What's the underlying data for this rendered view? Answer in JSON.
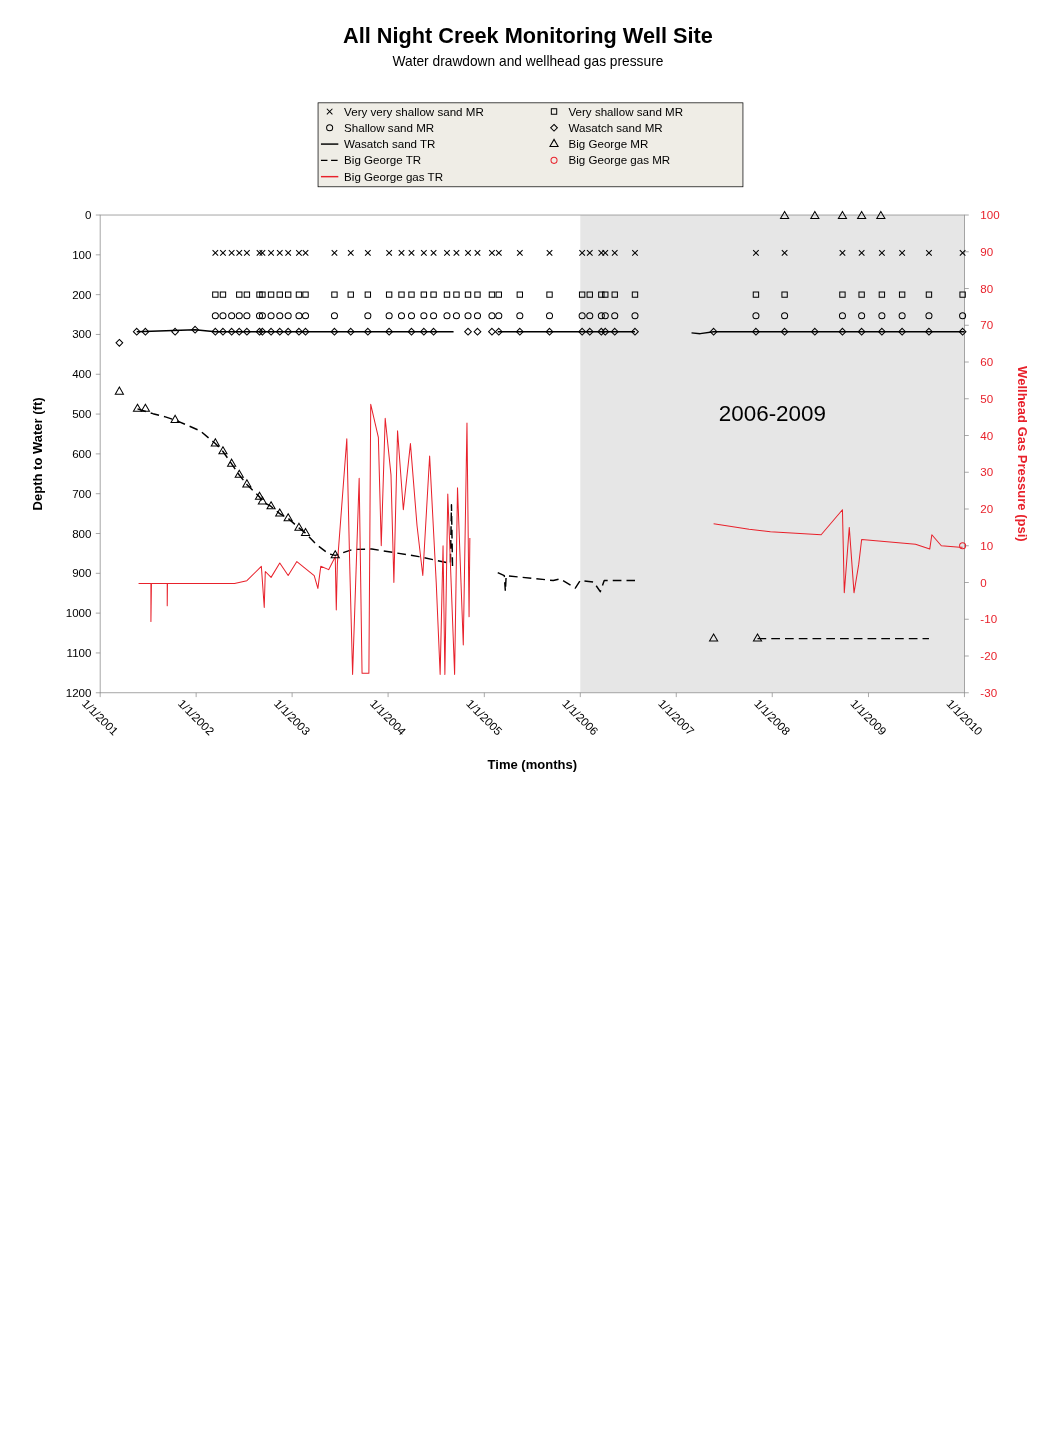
{
  "chart_data": {
    "type": "scatter",
    "title": "All Night Creek Monitoring Well Site",
    "subtitle": "Water drawdown and wellhead gas pressure",
    "xlabel": "Time (months)",
    "ylabel": "Depth to Water (ft)",
    "y2label": "Wellhead Gas Pressure (psi)",
    "xlim": [
      "2001-01-01",
      "2010-01-01"
    ],
    "xticks": [
      {
        "value": "2001-01-01",
        "label": "1/1/2001"
      },
      {
        "value": "2002-01-01",
        "label": "1/1/2002"
      },
      {
        "value": "2003-01-01",
        "label": "1/1/2003"
      },
      {
        "value": "2004-01-01",
        "label": "1/1/2004"
      },
      {
        "value": "2005-01-01",
        "label": "1/1/2005"
      },
      {
        "value": "2006-01-01",
        "label": "1/1/2006"
      },
      {
        "value": "2007-01-01",
        "label": "1/1/2007"
      },
      {
        "value": "2008-01-01",
        "label": "1/1/2008"
      },
      {
        "value": "2009-01-01",
        "label": "1/1/2009"
      },
      {
        "value": "2010-01-01",
        "label": "1/1/2010"
      }
    ],
    "ylim": [
      1200,
      0
    ],
    "yticks": [
      0,
      100,
      200,
      300,
      400,
      500,
      600,
      700,
      800,
      900,
      1000,
      1100,
      1200
    ],
    "y2lim": [
      -30,
      100
    ],
    "y2ticks": [
      -30,
      -20,
      -10,
      0,
      10,
      20,
      30,
      40,
      50,
      60,
      70,
      80,
      90,
      100
    ],
    "legend": "top",
    "bands": [
      {
        "axis": "x",
        "from": "2006-01-01",
        "to": "2010-01-01",
        "label": "2006-2009",
        "color": "#e6e6e6"
      }
    ],
    "series": [
      {
        "name": "Very very shallow sand MR",
        "marker": "cross",
        "color": "#000000",
        "x": [
          "2002-03-15",
          "2002-04-13",
          "2002-05-16",
          "2002-06-14",
          "2002-07-13",
          "2002-08-30",
          "2002-09-10",
          "2002-10-13",
          "2002-11-15",
          "2002-12-17",
          "2003-01-27",
          "2003-02-21",
          "2003-06-11",
          "2003-08-12",
          "2003-10-16",
          "2004-01-05",
          "2004-02-21",
          "2004-03-30",
          "2004-05-16",
          "2004-06-22",
          "2004-08-12",
          "2004-09-17",
          "2004-10-31",
          "2004-12-06",
          "2005-01-30",
          "2005-02-25",
          "2005-05-16",
          "2005-09-06",
          "2006-01-08",
          "2006-02-06",
          "2006-03-22",
          "2006-04-06",
          "2006-05-12",
          "2006-07-28",
          "2007-10-31",
          "2008-02-17",
          "2008-09-24",
          "2008-12-06",
          "2009-02-21",
          "2009-05-09",
          "2009-08-19",
          "2009-12-25"
        ],
        "values": [
          95,
          95,
          95,
          95,
          95,
          95,
          95,
          95,
          95,
          95,
          95,
          95,
          95,
          95,
          95,
          95,
          95,
          95,
          95,
          95,
          95,
          95,
          95,
          95,
          95,
          95,
          95,
          95,
          95,
          95,
          95,
          95,
          95,
          95,
          95,
          95,
          95,
          95,
          95,
          95,
          95,
          95
        ]
      },
      {
        "name": "Shallow sand MR",
        "marker": "circle",
        "color": "#000000",
        "x": [
          "2002-03-15",
          "2002-04-13",
          "2002-05-16",
          "2002-06-14",
          "2002-07-13",
          "2002-08-30",
          "2002-09-10",
          "2002-10-13",
          "2002-11-15",
          "2002-12-17",
          "2003-01-27",
          "2003-02-21",
          "2003-06-11",
          "2003-10-16",
          "2004-01-05",
          "2004-02-21",
          "2004-03-30",
          "2004-05-16",
          "2004-06-22",
          "2004-08-12",
          "2004-09-17",
          "2004-10-31",
          "2004-12-06",
          "2005-01-30",
          "2005-02-25",
          "2005-05-16",
          "2005-09-06",
          "2006-01-08",
          "2006-02-06",
          "2006-03-22",
          "2006-04-06",
          "2006-05-12",
          "2006-07-28",
          "2007-10-31",
          "2008-02-17",
          "2008-09-24",
          "2008-12-06",
          "2009-02-21",
          "2009-05-09",
          "2009-08-19",
          "2009-12-25"
        ],
        "values": [
          253,
          253,
          253,
          253,
          253,
          253,
          253,
          253,
          253,
          253,
          253,
          253,
          253,
          253,
          253,
          253,
          253,
          253,
          253,
          253,
          253,
          253,
          253,
          253,
          253,
          253,
          253,
          253,
          253,
          253,
          253,
          253,
          253,
          253,
          253,
          253,
          253,
          253,
          253,
          253,
          253
        ]
      },
      {
        "name": "Wasatch sand TR",
        "type": "line",
        "marker": "none",
        "line_style": "solid",
        "color": "#000000",
        "x": [
          "2001-05-20",
          "2001-12-28",
          "2002-03-15",
          "2004-09-06",
          "2004-11-25",
          "2005-02-21",
          "2006-07-28",
          "2006-11-25",
          "2007-02-28",
          "2007-04-02",
          "2007-05-23",
          "2010-01-01"
        ],
        "values": [
          293,
          288,
          293,
          293,
          null,
          293,
          293,
          null,
          296,
          298,
          293,
          293
        ]
      },
      {
        "name": "Big George TR",
        "type": "line",
        "marker": "none",
        "line_style": "dashed",
        "color": "#000000",
        "x": [
          "2001-05-23",
          "2001-07-21",
          "2001-09-06",
          "2001-10-13",
          "2002-01-16",
          "2002-03-15",
          "2002-04-13",
          "2002-05-16",
          "2002-06-14",
          "2002-07-13",
          "2002-08-30",
          "2002-09-10",
          "2002-10-13",
          "2002-11-15",
          "2002-12-17",
          "2003-01-27",
          "2003-02-21",
          "2003-04-02",
          "2003-05-20",
          "2003-06-14",
          "2003-08-19",
          "2003-10-31",
          "2004-04-27",
          "2004-08-25",
          "2004-08-29",
          "2004-09-02",
          "2004-11-25",
          "2005-02-21",
          "2005-03-18",
          "2005-03-22",
          "2005-03-25",
          "2005-09-20",
          "2005-10-16",
          "2005-12-13",
          "2006-01-01",
          "2006-02-21",
          "2006-03-18",
          "2006-04-02",
          "2006-05-30",
          "2006-07-28",
          "2007-01-01",
          "2007-11-06",
          "2009-08-19"
        ],
        "values": [
          487,
          499,
          507,
          515,
          542,
          574,
          594,
          625,
          653,
          677,
          708,
          720,
          732,
          750,
          762,
          786,
          799,
          827,
          851,
          855,
          840,
          839,
          858,
          875,
          728,
          882,
          null,
          898,
          906,
          945,
          906,
          918,
          914,
          937,
          918,
          922,
          946,
          918,
          918,
          918,
          null,
          1064,
          1064
        ]
      },
      {
        "name": "Big George gas TR",
        "type": "line",
        "marker": "none",
        "line_style": "solid",
        "axis": "y2",
        "color": "#e8212b",
        "x": [
          "2001-05-27",
          "2001-07-13",
          "2001-07-13",
          "2001-07-15",
          "2001-09-13",
          "2001-09-13",
          "2001-09-14",
          "2002-03-30",
          "2002-05-27",
          "2002-07-13",
          "2002-09-06",
          "2002-09-17",
          "2002-09-21",
          "2002-10-13",
          "2002-11-15",
          "2002-12-17",
          "2003-01-19",
          "2003-03-26",
          "2003-04-09",
          "2003-04-20",
          "2003-05-20",
          "2003-06-14",
          "2003-06-18",
          "2003-06-22",
          "2003-07-28",
          "2003-08-08",
          "2003-08-19",
          "2003-09-13",
          "2003-09-24",
          "2003-10-20",
          "2003-10-27",
          "2003-11-25",
          "2003-12-06",
          "2003-12-21",
          "2004-01-12",
          "2004-01-23",
          "2004-02-06",
          "2004-02-28",
          "2004-03-26",
          "2004-04-20",
          "2004-05-12",
          "2004-06-07",
          "2004-07-02",
          "2004-07-17",
          "2004-07-28",
          "2004-08-04",
          "2004-08-15",
          "2004-09-10",
          "2004-09-21",
          "2004-10-13",
          "2004-10-27",
          "2004-11-04",
          "2004-11-07",
          "2005-07-02",
          "2007-05-23",
          "2007-10-05",
          "2007-12-25",
          "2008-07-05",
          "2008-09-24",
          "2008-10-01",
          "2008-10-20",
          "2008-11-07",
          "2008-11-25",
          "2008-12-06",
          "2009-06-29",
          "2009-08-22",
          "2009-08-30",
          "2009-10-05",
          "2009-12-14",
          "2009-12-25"
        ],
        "values": [
          -0.3,
          -0.3,
          -10.6,
          -0.3,
          -0.3,
          -6.3,
          -0.3,
          -0.3,
          -0.3,
          0.5,
          4.4,
          -6.8,
          3,
          1.4,
          5.3,
          1.9,
          5.7,
          1.9,
          -1.6,
          4.4,
          3.5,
          7,
          -7.5,
          5,
          39.1,
          5,
          -25,
          28.4,
          -24.7,
          -24.7,
          48.5,
          39.5,
          10,
          44.7,
          29.3,
          0,
          41.3,
          19.8,
          37.8,
          15.5,
          1.9,
          34.4,
          0.1,
          -25,
          10,
          -25,
          24.1,
          -25,
          25.8,
          -17,
          43.4,
          -9.3,
          12.1,
          null,
          16,
          14.5,
          13.8,
          13,
          19.8,
          -2.8,
          15,
          -2.8,
          5,
          11.7,
          10.4,
          9.1,
          13,
          10,
          9.6,
          9.6
        ]
      },
      {
        "name": "Very shallow sand MR",
        "marker": "square",
        "color": "#000000",
        "x": [
          "2002-03-15",
          "2002-04-13",
          "2002-06-14",
          "2002-07-13",
          "2002-08-30",
          "2002-09-10",
          "2002-10-13",
          "2002-11-15",
          "2002-12-17",
          "2003-01-27",
          "2003-02-21",
          "2003-06-11",
          "2003-08-12",
          "2003-10-16",
          "2004-01-05",
          "2004-02-21",
          "2004-03-30",
          "2004-05-16",
          "2004-06-22",
          "2004-08-12",
          "2004-09-17",
          "2004-10-31",
          "2004-12-06",
          "2005-01-30",
          "2005-02-25",
          "2005-05-16",
          "2005-09-06",
          "2006-01-08",
          "2006-02-06",
          "2006-03-22",
          "2006-04-06",
          "2006-05-12",
          "2006-07-28",
          "2007-10-31",
          "2008-02-17",
          "2008-09-24",
          "2008-12-06",
          "2009-02-21",
          "2009-05-09",
          "2009-08-19",
          "2009-12-25"
        ],
        "values": [
          200,
          200,
          200,
          200,
          200,
          200,
          200,
          200,
          200,
          200,
          200,
          200,
          200,
          200,
          200,
          200,
          200,
          200,
          200,
          200,
          200,
          200,
          200,
          200,
          200,
          200,
          200,
          200,
          200,
          200,
          200,
          200,
          200,
          200,
          200,
          200,
          200,
          200,
          200,
          200,
          200
        ]
      },
      {
        "name": "Wasatch sand MR",
        "marker": "diamond",
        "color": "#000000",
        "x": [
          "2001-03-15",
          "2001-05-20",
          "2001-06-22",
          "2001-10-13",
          "2001-12-28",
          "2002-03-15",
          "2002-04-13",
          "2002-05-16",
          "2002-06-14",
          "2002-07-13",
          "2002-08-30",
          "2002-09-10",
          "2002-10-13",
          "2002-11-15",
          "2002-12-17",
          "2003-01-27",
          "2003-02-21",
          "2003-06-11",
          "2003-08-12",
          "2003-10-16",
          "2004-01-05",
          "2004-03-30",
          "2004-05-16",
          "2004-06-22",
          "2004-10-31",
          "2004-12-06",
          "2005-01-30",
          "2005-02-25",
          "2005-05-16",
          "2005-09-06",
          "2006-01-08",
          "2006-02-06",
          "2006-03-22",
          "2006-04-06",
          "2006-05-12",
          "2006-07-28",
          "2007-05-23",
          "2007-10-31",
          "2008-02-17",
          "2008-06-11",
          "2008-09-24",
          "2008-12-06",
          "2009-02-21",
          "2009-05-09",
          "2009-08-19",
          "2009-12-25"
        ],
        "values": [
          321,
          293,
          293,
          293,
          288,
          293,
          293,
          293,
          293,
          293,
          293,
          293,
          293,
          293,
          293,
          293,
          293,
          293,
          293,
          293,
          293,
          293,
          293,
          293,
          293,
          293,
          293,
          293,
          293,
          293,
          293,
          293,
          293,
          293,
          293,
          293,
          293,
          293,
          293,
          293,
          293,
          293,
          293,
          293,
          293,
          293
        ]
      },
      {
        "name": "Big George MR",
        "marker": "triangle",
        "color": "#000000",
        "x": [
          "2001-03-15",
          "2001-05-23",
          "2001-06-22",
          "2001-10-13",
          "2002-03-15",
          "2002-04-13",
          "2002-05-16",
          "2002-06-14",
          "2002-07-13",
          "2002-08-30",
          "2002-09-10",
          "2002-10-13",
          "2002-11-15",
          "2002-12-17",
          "2003-01-27",
          "2003-02-21",
          "2003-06-14",
          "2007-05-23",
          "2007-11-06",
          "2008-02-17",
          "2008-06-11",
          "2008-09-24",
          "2008-12-06",
          "2009-02-17"
        ],
        "values": [
          444,
          487,
          487,
          515,
          574,
          594,
          625,
          653,
          677,
          708,
          720,
          732,
          750,
          762,
          786,
          799,
          855,
          1064,
          1064,
          3,
          3,
          3,
          3,
          3
        ]
      },
      {
        "name": "Big George gas MR",
        "marker": "circle",
        "axis": "y2",
        "color": "#e8212b",
        "x": [
          "2009-12-25"
        ],
        "values": [
          10
        ]
      }
    ]
  }
}
